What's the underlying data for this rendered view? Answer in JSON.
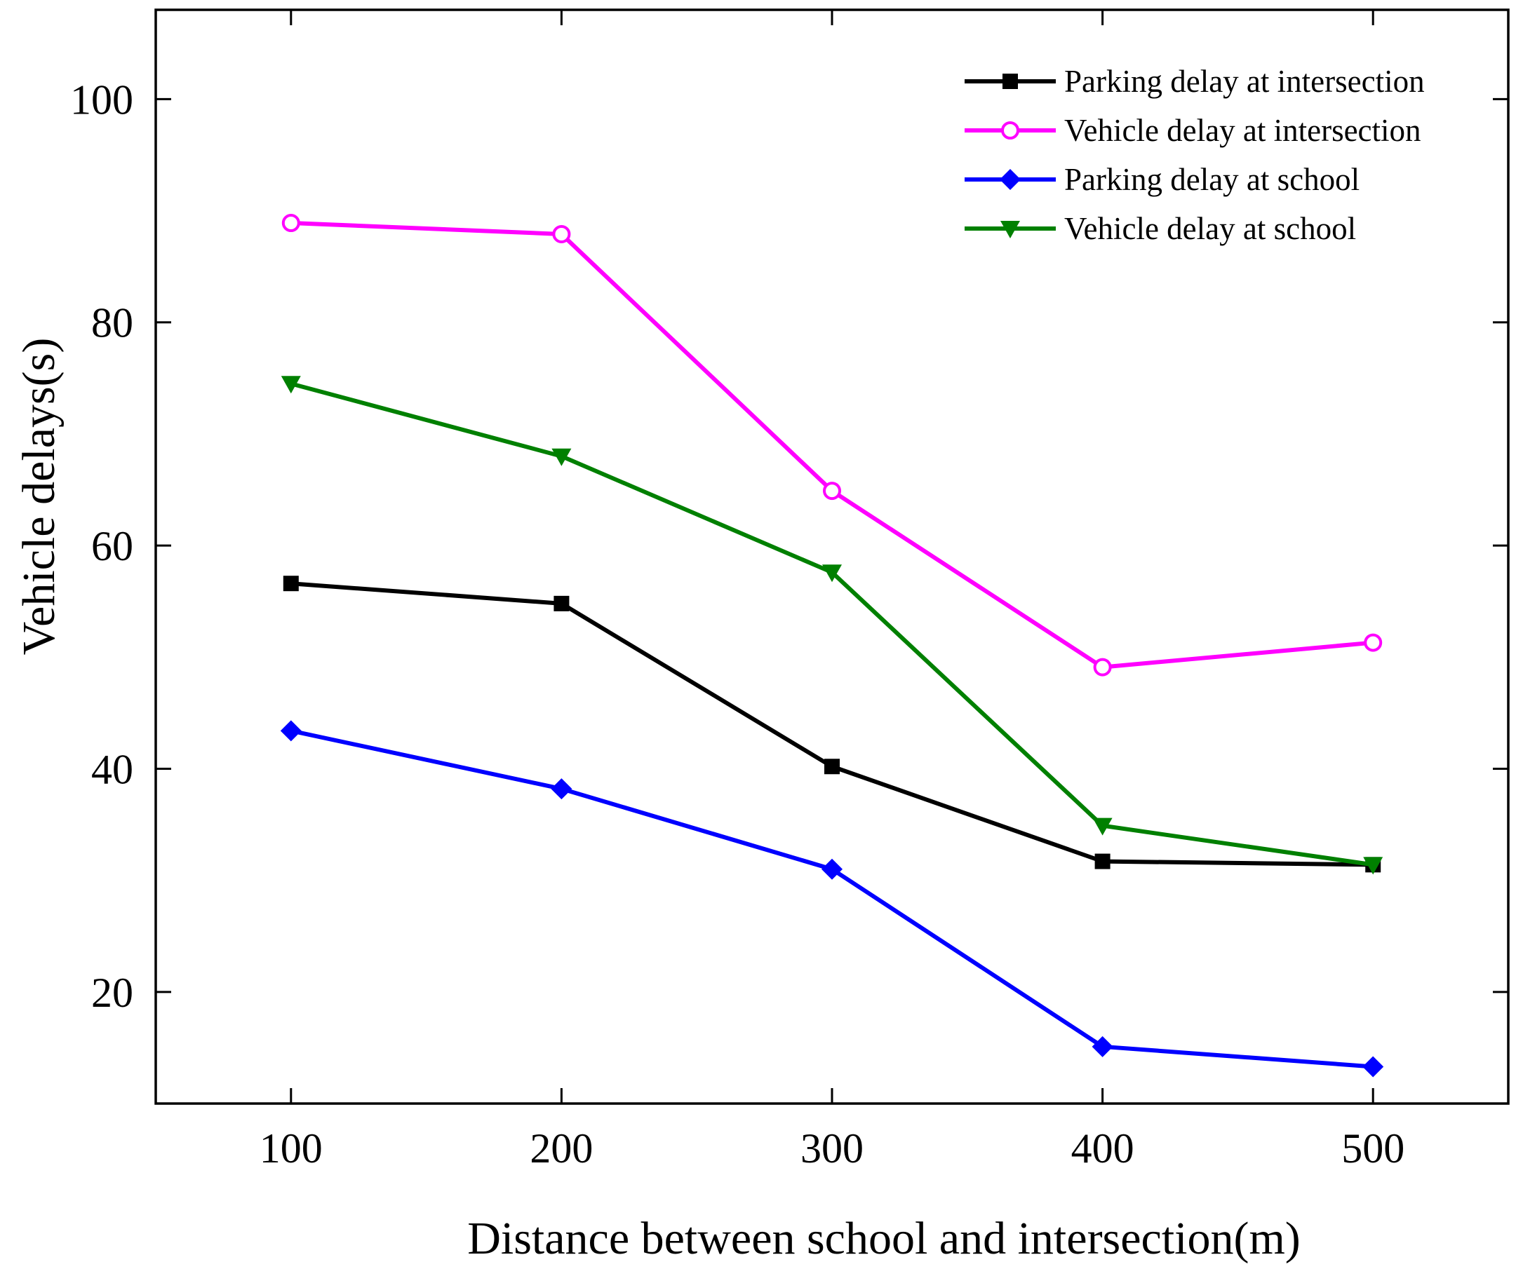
{
  "chart_data": {
    "type": "line",
    "title": "",
    "xlabel": "Distance between school and intersection(m)",
    "ylabel": "Vehicle delays(s)",
    "x": [
      100,
      200,
      300,
      400,
      500
    ],
    "xlim": [
      50,
      550
    ],
    "ylim": [
      10,
      108
    ],
    "xticks": [
      100,
      200,
      300,
      400,
      500
    ],
    "yticks": [
      20,
      40,
      60,
      80,
      100
    ],
    "grid": false,
    "legend_position": "top-right",
    "series": [
      {
        "name": "Parking delay at intersection",
        "values": [
          56.6,
          54.8,
          40.2,
          31.7,
          31.4
        ],
        "color": "#000000",
        "marker": "square"
      },
      {
        "name": "Vehicle delay at intersection",
        "values": [
          88.9,
          87.9,
          64.9,
          49.1,
          51.3
        ],
        "color": "#ff00ff",
        "marker": "circle"
      },
      {
        "name": "Parking delay at school",
        "values": [
          43.4,
          38.2,
          31.0,
          15.1,
          13.3
        ],
        "color": "#0000ff",
        "marker": "diamond"
      },
      {
        "name": "Vehicle delay at school",
        "values": [
          74.5,
          68.0,
          57.6,
          34.9,
          31.4
        ],
        "color": "#008000",
        "marker": "triangle-down"
      }
    ]
  }
}
